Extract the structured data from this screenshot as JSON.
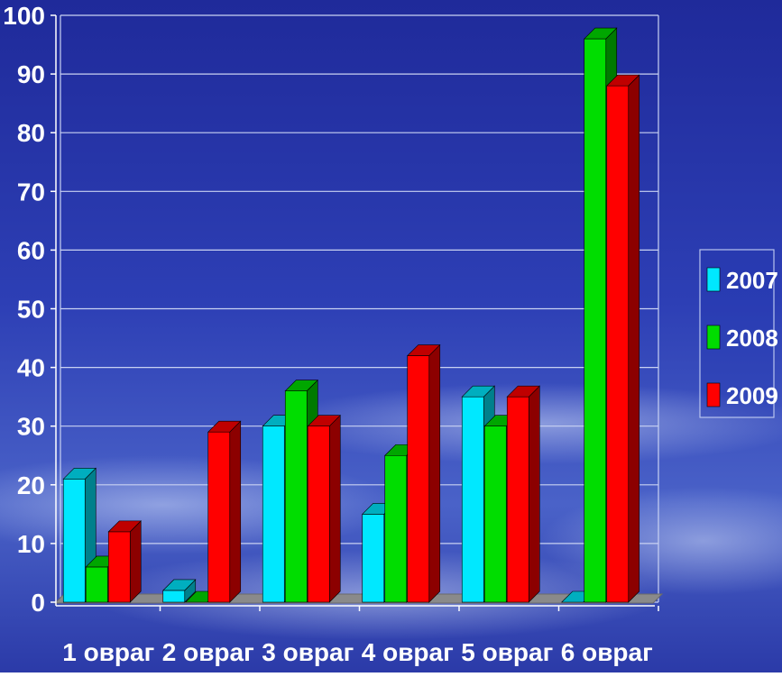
{
  "chart_data": {
    "type": "bar",
    "title": "",
    "xlabel": "",
    "ylabel": "",
    "ylim": [
      0,
      100
    ],
    "yticks": [
      0,
      10,
      20,
      30,
      40,
      50,
      60,
      70,
      80,
      90,
      100
    ],
    "categories": [
      "1 овраг",
      "2 овраг",
      "3 овраг",
      "4 овраг",
      "5 овраг",
      "6 овраг"
    ],
    "series": [
      {
        "name": "2007",
        "color": "#00e8ff",
        "values": [
          21,
          2,
          30,
          15,
          35,
          0
        ]
      },
      {
        "name": "2008",
        "color": "#00dd00",
        "values": [
          6,
          0,
          36,
          25,
          30,
          96
        ]
      },
      {
        "name": "2009",
        "color": "#ff0000",
        "values": [
          12,
          29,
          30,
          42,
          35,
          88
        ]
      }
    ],
    "grid": true,
    "legend": "right",
    "style": "3d-columns",
    "background": "#2a35a8"
  }
}
